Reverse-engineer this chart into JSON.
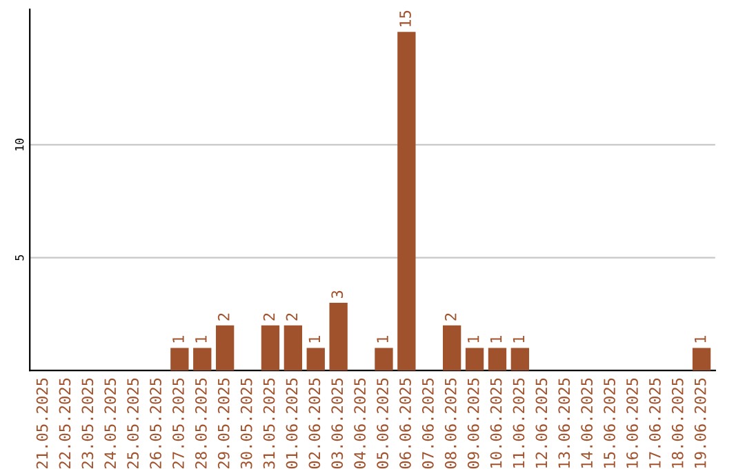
{
  "chart_data": {
    "type": "bar",
    "categories": [
      "21.05.2025",
      "22.05.2025",
      "23.05.2025",
      "24.05.2025",
      "25.05.2025",
      "26.05.2025",
      "27.05.2025",
      "28.05.2025",
      "29.05.2025",
      "30.05.2025",
      "31.05.2025",
      "01.06.2025",
      "02.06.2025",
      "03.06.2025",
      "04.06.2025",
      "05.06.2025",
      "06.06.2025",
      "07.06.2025",
      "08.06.2025",
      "09.06.2025",
      "10.06.2025",
      "11.06.2025",
      "12.06.2025",
      "13.06.2025",
      "14.06.2025",
      "15.06.2025",
      "16.06.2025",
      "17.06.2025",
      "18.06.2025",
      "19.06.2025"
    ],
    "values": [
      0,
      0,
      0,
      0,
      0,
      0,
      1,
      1,
      2,
      0,
      2,
      2,
      1,
      3,
      0,
      1,
      15,
      0,
      2,
      1,
      1,
      1,
      0,
      0,
      0,
      0,
      0,
      0,
      0,
      1
    ],
    "value_labels": [
      null,
      null,
      null,
      null,
      null,
      null,
      "1",
      "1",
      "2",
      null,
      "2",
      "2",
      "1",
      "3",
      null,
      "1",
      "15",
      null,
      "2",
      "1",
      "1",
      "1",
      null,
      null,
      null,
      null,
      null,
      null,
      null,
      "1"
    ],
    "color": "#a0522d",
    "ylim": [
      0,
      16
    ],
    "yticks": [
      5,
      10
    ],
    "grid": "y"
  }
}
